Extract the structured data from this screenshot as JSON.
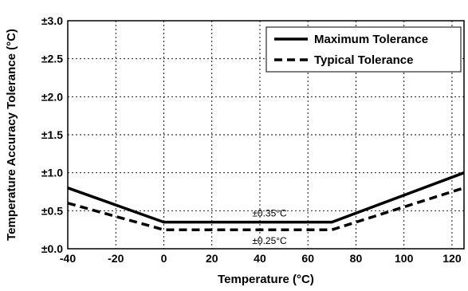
{
  "chart_data": {
    "type": "line",
    "xlabel": "Temperature (°C)",
    "ylabel": "Temperature Accuracy Tolerance (°C)",
    "xlim": [
      -40,
      125
    ],
    "ylim": [
      0,
      3.0
    ],
    "x_ticks": [
      -40,
      -20,
      0,
      20,
      40,
      60,
      80,
      100,
      120
    ],
    "y_ticks": [
      0.0,
      0.5,
      1.0,
      1.5,
      2.0,
      2.5,
      3.0
    ],
    "x_tick_labels": [
      "-40",
      "-20",
      "0",
      "20",
      "40",
      "60",
      "80",
      "100",
      "120"
    ],
    "y_tick_labels": [
      "±0.0",
      "±0.5",
      "±1.0",
      "±1.5",
      "±2.0",
      "±2.5",
      "±3.0"
    ],
    "grid": true,
    "legend_position": "top-right",
    "series": [
      {
        "name": "Maximum Tolerance",
        "style": "solid",
        "color": "#000000",
        "points": [
          [
            -40,
            0.8
          ],
          [
            0,
            0.35
          ],
          [
            70,
            0.35
          ],
          [
            125,
            1.0
          ]
        ]
      },
      {
        "name": "Typical Tolerance",
        "style": "dashed",
        "color": "#000000",
        "points": [
          [
            -40,
            0.6
          ],
          [
            0,
            0.25
          ],
          [
            70,
            0.25
          ],
          [
            125,
            0.8
          ]
        ]
      }
    ],
    "annotations": [
      {
        "text": "±0.35°C",
        "x": 44,
        "y": 0.35,
        "position": "above"
      },
      {
        "text": "±0.25°C",
        "x": 44,
        "y": 0.25,
        "position": "below"
      }
    ]
  }
}
